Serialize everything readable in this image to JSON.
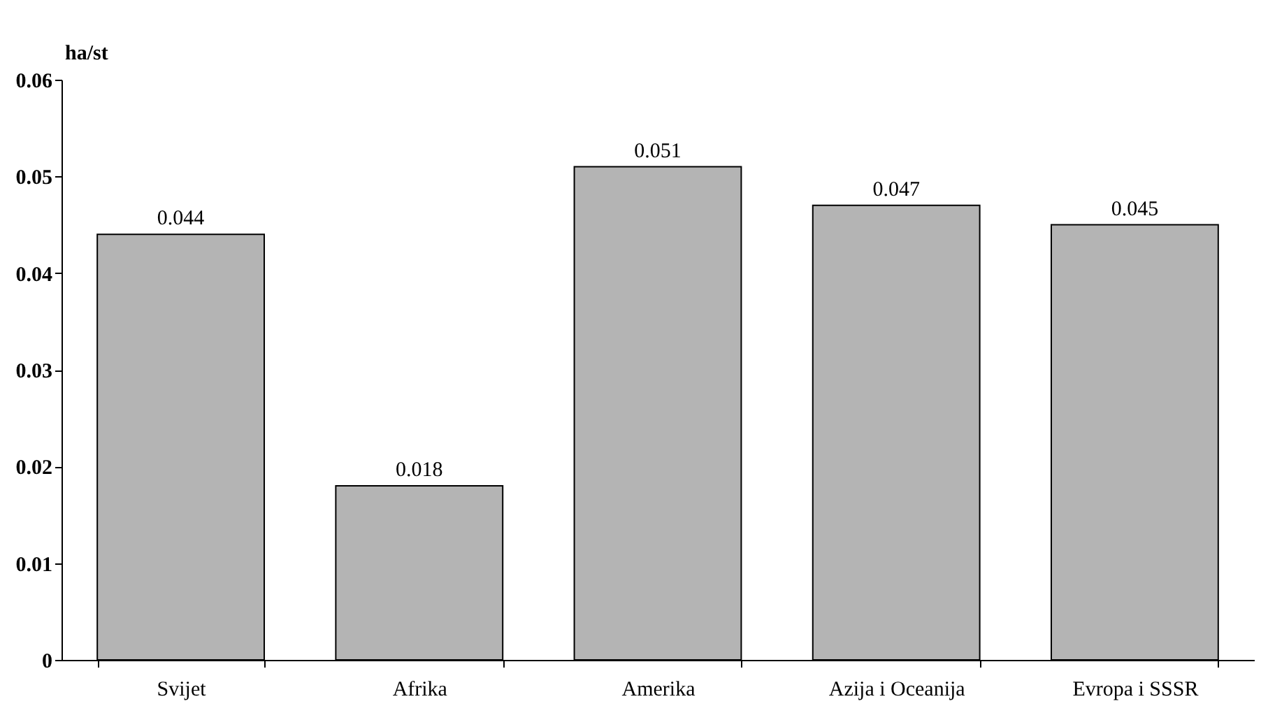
{
  "chart_data": {
    "type": "bar",
    "ylabel": "ha/st",
    "categories": [
      "Svijet",
      "Afrika",
      "Amerika",
      "Azija i Oceanija",
      "Evropa i SSSR"
    ],
    "values": [
      0.044,
      0.018,
      0.051,
      0.047,
      0.045
    ],
    "color": "#b4b4b4",
    "ylim": [
      0,
      0.06
    ],
    "yticks": [
      0,
      0.01,
      0.02,
      0.03,
      0.04,
      0.05,
      0.06
    ],
    "data_labels": true,
    "grid": false
  }
}
